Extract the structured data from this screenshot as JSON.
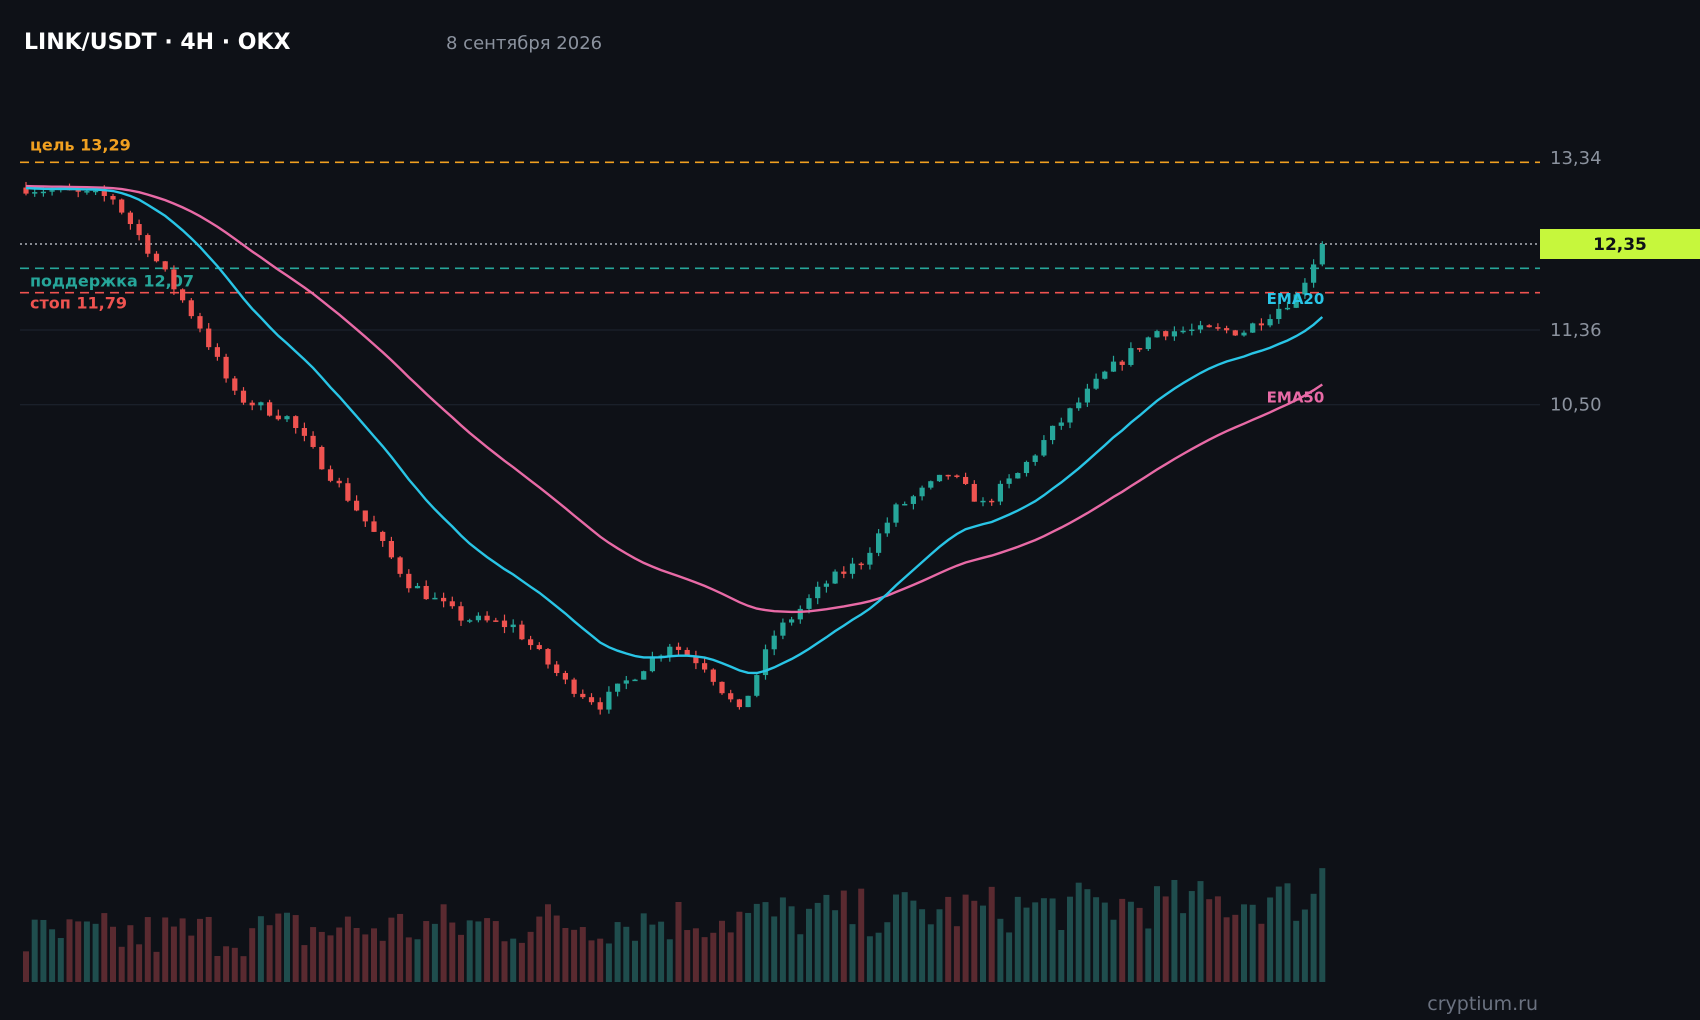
{
  "header": {
    "title": "LINK/USDT · 4H · OKX",
    "date": "8 сентября 2026"
  },
  "watermark": "cryptium.ru",
  "colors": {
    "background": "#0e1117",
    "up": "#26a69a",
    "down": "#ef5350",
    "ema20": "#29c5e6",
    "ema50": "#e86aa6",
    "target": "#f0a020",
    "support": "#26a69a",
    "stop": "#ef5350",
    "last_price_bg": "#c6f73c",
    "grid": "#1f2530",
    "axis_text": "#8b929e"
  },
  "chart_data": {
    "type": "candlestick",
    "pair": "LINK/USDT",
    "timeframe": "4H",
    "exchange": "OKX",
    "y_axis_ticks": [
      {
        "value": 13.34,
        "label": "13,34"
      },
      {
        "value": 11.36,
        "label": "11,36"
      },
      {
        "value": 10.5,
        "label": "10,50"
      }
    ],
    "ylim": [
      6.2,
      14.5
    ],
    "last_price": {
      "value": 12.35,
      "label": "12,35"
    },
    "levels": [
      {
        "name": "target",
        "value": 13.29,
        "label": "цель 13,29"
      },
      {
        "name": "support",
        "value": 12.07,
        "label": "поддержка 12,07"
      },
      {
        "name": "stop",
        "value": 11.79,
        "label": "стоп 11,79"
      }
    ],
    "indicators": [
      {
        "name": "EMA20",
        "label": "EMA20"
      },
      {
        "name": "EMA50",
        "label": "EMA50"
      }
    ],
    "candle_count": 150,
    "anchors": [
      [
        0,
        13.0
      ],
      [
        10,
        12.88
      ],
      [
        14,
        12.3
      ],
      [
        20,
        11.4
      ],
      [
        24,
        10.6
      ],
      [
        30,
        10.35
      ],
      [
        38,
        9.3
      ],
      [
        44,
        8.45
      ],
      [
        50,
        8.05
      ],
      [
        56,
        7.95
      ],
      [
        62,
        7.3
      ],
      [
        66,
        7.05
      ],
      [
        70,
        7.4
      ],
      [
        74,
        7.75
      ],
      [
        78,
        7.5
      ],
      [
        82,
        6.95
      ],
      [
        86,
        7.85
      ],
      [
        92,
        8.45
      ],
      [
        96,
        8.7
      ],
      [
        100,
        9.3
      ],
      [
        106,
        9.7
      ],
      [
        110,
        9.35
      ],
      [
        114,
        9.7
      ],
      [
        118,
        10.2
      ],
      [
        124,
        10.85
      ],
      [
        130,
        11.35
      ],
      [
        140,
        11.35
      ],
      [
        146,
        11.75
      ],
      [
        149,
        12.35
      ]
    ],
    "noise_seed": 7
  }
}
